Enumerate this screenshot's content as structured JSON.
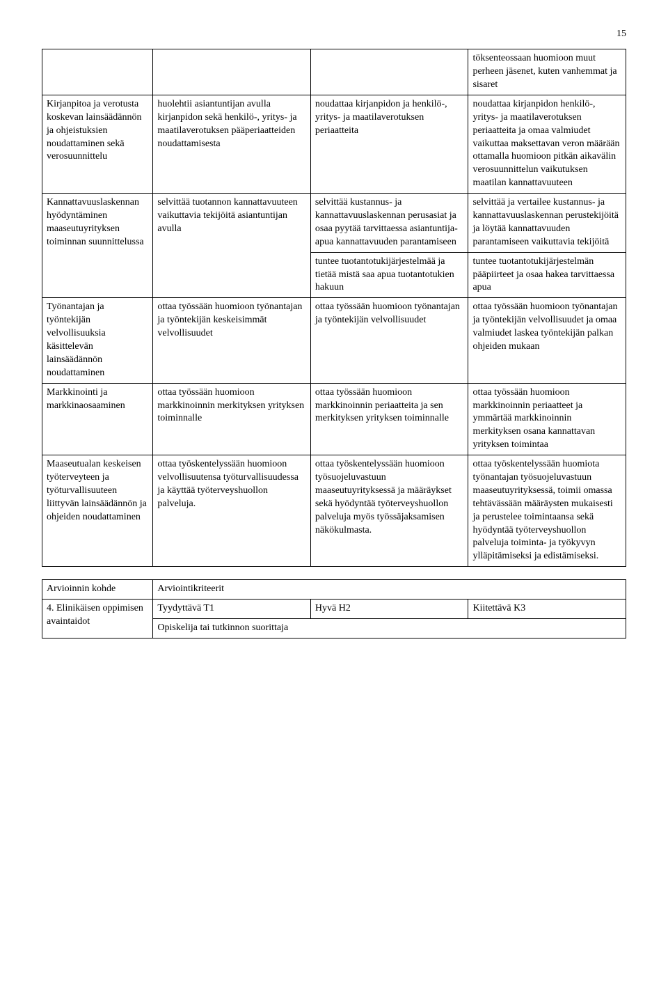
{
  "pageNumber": "15",
  "table1": {
    "rows": [
      {
        "c1": "",
        "c2": "",
        "c3": "",
        "c4": "töksenteossaan huomioon muut perheen jäsenet, kuten vanhemmat ja sisaret"
      },
      {
        "c1": "Kirjanpitoa ja verotusta koskevan lainsäädännön ja ohjeistuksien noudattaminen sekä verosuunnittelu",
        "c2": "huolehtii asiantuntijan avulla kirjanpidon sekä henkilö-, yritys- ja maatilaverotuksen pääperiaatteiden noudattamisesta",
        "c3": "noudattaa kirjanpidon ja henkilö-, yritys- ja maatilaverotuksen periaatteita",
        "c4": "noudattaa kirjanpidon henkilö-, yritys- ja maatilaverotuksen periaatteita ja omaa valmiudet vaikuttaa maksettavan veron määrään ottamalla huomioon pitkän aikavälin verosuunnittelun vaikutuksen maatilan kannattavuuteen"
      },
      {
        "c1": "Kannattavuuslaskennan hyödyntäminen maaseutuyrityksen toiminnan suunnittelussa",
        "c1_rowspan": 2,
        "c2": "selvittää tuotannon kannattavuuteen vaikuttavia tekijöitä asiantuntijan avulla",
        "c2_rowspan": 2,
        "c3": "selvittää kustannus- ja kannattavuuslaskennan perusasiat ja osaa pyytää tarvittaessa asiantuntija-apua kannattavuuden parantamiseen",
        "c4": "selvittää ja vertailee kustannus- ja kannattavuuslaskennan perustekijöitä ja löytää kannattavuuden parantamiseen vaikuttavia tekijöitä"
      },
      {
        "c3": "tuntee tuotantotukijärjestelmää ja tietää mistä saa apua tuotantotukien hakuun",
        "c4": "tuntee tuotantotukijärjestelmän pääpiirteet ja osaa hakea tarvittaessa apua"
      },
      {
        "c1": "Työnantajan ja työntekijän velvollisuuksia käsittelevän lainsäädännön noudattaminen",
        "c2": "ottaa työssään huomioon työnantajan ja työntekijän keskeisimmät velvollisuudet",
        "c3": "ottaa työssään huomioon työnantajan ja työntekijän velvollisuudet",
        "c4": "ottaa työssään huomioon työnantajan ja työntekijän velvollisuudet ja omaa valmiudet laskea työntekijän palkan ohjeiden mukaan"
      },
      {
        "c1": "Markkinointi ja markkinaosaaminen",
        "c2": "ottaa työssään huomioon markkinoinnin merkityksen yrityksen toiminnalle",
        "c3": "ottaa työssään huomioon markkinoinnin periaatteita ja sen merkityksen yrityksen toiminnalle",
        "c4": "ottaa työssään huomioon markkinoinnin periaatteet ja ymmärtää markkinoinnin merkityksen osana kannattavan yrityksen toimintaa"
      },
      {
        "c1": "Maaseutualan keskeisen työterveyteen ja työturvallisuuteen liittyvän lainsäädännön ja ohjeiden noudattaminen",
        "c2": "ottaa työskentelyssään huomioon velvollisuutensa työturvallisuudessa ja käyttää työterveyshuollon palveluja.",
        "c3": "ottaa työskentelyssään huomioon työsuojeluvastuun maaseutuyrityksessä ja määräykset sekä hyödyntää työterveyshuollon palveluja myös työssäjaksamisen näkökulmasta.",
        "c4": "ottaa työskentelyssään huomiota työnantajan työsuojeluvastuun maaseutuyrityksessä, toimii omassa tehtävässään määräysten mukaisesti ja perustelee toimintaansa sekä hyödyntää työterveyshuollon palveluja toiminta- ja työkyvyn ylläpitämiseksi ja edistämiseksi."
      }
    ]
  },
  "table2": {
    "row1": {
      "c1": "Arvioinnin kohde",
      "c2": "Arviointikriteerit"
    },
    "row2": {
      "c1": "4. Elinikäisen oppimisen avaintaidot",
      "c2a": "Tyydyttävä T1",
      "c2b": "Hyvä H2",
      "c2c": "Kiitettävä K3"
    },
    "row3": {
      "c2": "Opiskelija tai tutkinnon suorittaja"
    }
  }
}
